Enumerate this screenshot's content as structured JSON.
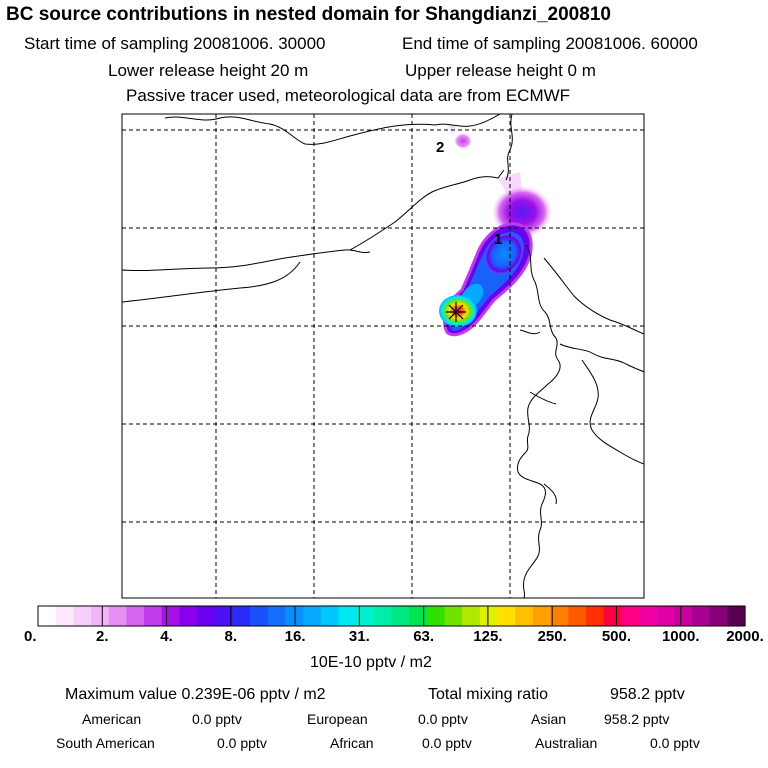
{
  "header": {
    "title": "BC  source contributions in nested domain for Shangdianzi_200810",
    "start_label": "Start time of sampling 20081006. 30000",
    "end_label": "End time of sampling 20081006. 60000",
    "lower_label": "Lower release height   20 m",
    "upper_label": "Upper release height    0 m",
    "tracer_note": "Passive tracer used, meteorological data are from ECMWF"
  },
  "map": {
    "markers": [
      {
        "label": "1"
      },
      {
        "label": "2"
      }
    ],
    "receptor_icon": "asterisk-star-icon"
  },
  "colorbar": {
    "ticks": [
      "0.",
      "2.",
      "4.",
      "8.",
      "16.",
      "31.",
      "63.",
      "125.",
      "250.",
      "500.",
      "1000.",
      "2000."
    ],
    "units": "10E-10 pptv / m2",
    "colors": [
      "#ffffff",
      "#fce9fd",
      "#f6d0fa",
      "#f0b6f7",
      "#e88ff3",
      "#d866f0",
      "#c23cee",
      "#a610ea",
      "#8800ee",
      "#6a00f0",
      "#4c10f4",
      "#2c2cf8",
      "#1a50fa",
      "#1270fc",
      "#0a90fe",
      "#08aaff",
      "#00c8ff",
      "#00e8f2",
      "#00f0d0",
      "#00eeaa",
      "#00e880",
      "#00e450",
      "#30e000",
      "#70e400",
      "#b0e800",
      "#e0f000",
      "#ffe000",
      "#ffc000",
      "#ffa000",
      "#ff8000",
      "#ff5a00",
      "#ff3000",
      "#ff0040",
      "#ff0080",
      "#f000a0",
      "#e000a8",
      "#c800a0",
      "#a80090",
      "#880078",
      "#580050"
    ]
  },
  "summary": {
    "max_label": "Maximum value  0.239E-06 pptv / m2",
    "total_label": "Total mixing ratio",
    "total_value": "958.2 pptv",
    "regions": [
      {
        "name": "American",
        "value": "0.0 pptv"
      },
      {
        "name": "European",
        "value": "0.0 pptv"
      },
      {
        "name": "Asian",
        "value": "958.2 pptv"
      },
      {
        "name": "South American",
        "value": "0.0 pptv"
      },
      {
        "name": "African",
        "value": "0.0 pptv"
      },
      {
        "name": "Australian",
        "value": "0.0 pptv"
      }
    ]
  }
}
